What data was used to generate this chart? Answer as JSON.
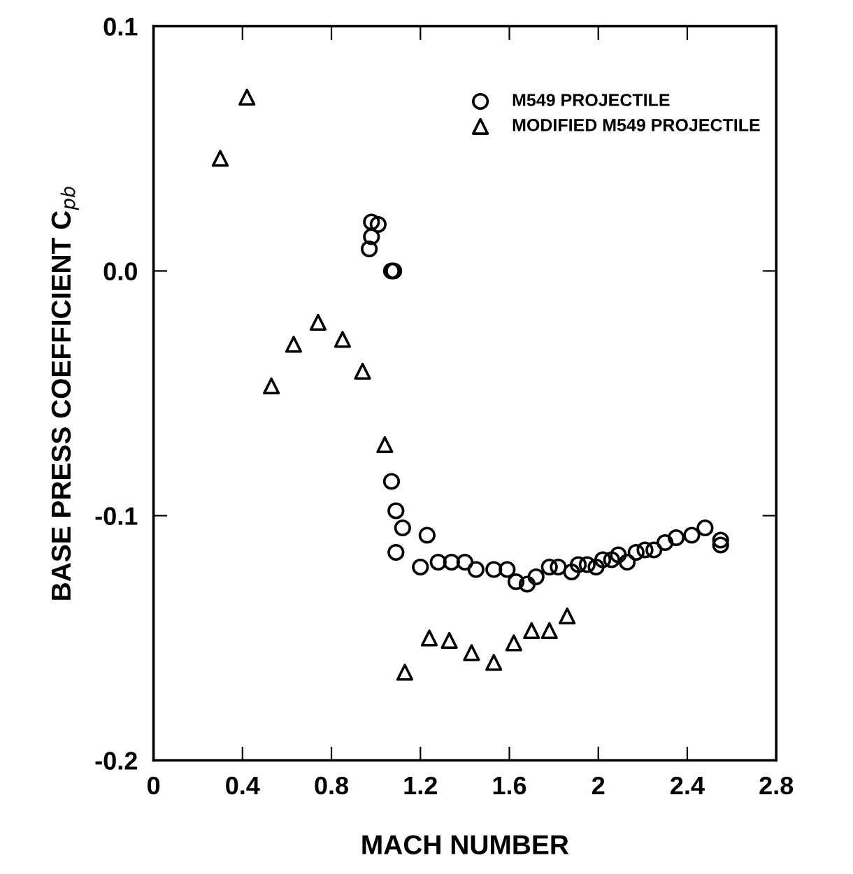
{
  "chart_data": {
    "type": "scatter",
    "xlabel": "MACH NUMBER",
    "ylabel": "BASE PRESS COEFFICIENT C$_{pb}$",
    "xlim": [
      0,
      2.8
    ],
    "ylim": [
      -0.2,
      0.1
    ],
    "xticks": [
      0,
      0.4,
      0.8,
      1.2,
      1.6,
      2,
      2.4,
      2.8
    ],
    "yticks": [
      {
        "value": -0.2,
        "label": "-0.2"
      },
      {
        "value": -0.1,
        "label": "-0.1"
      },
      {
        "value": 0,
        "label": "0.0"
      },
      {
        "value": 0.1,
        "label": "0.1"
      }
    ],
    "grid": false,
    "legend": "top right",
    "series": [
      {
        "name": "M549 PROJECTILE",
        "color": "#000000",
        "marker": "circle",
        "x": [
          0.97,
          0.98,
          0.98,
          1.01,
          1.07,
          1.08,
          1.07,
          1.09,
          1.12,
          1.23,
          1.09,
          1.2,
          1.28,
          1.34,
          1.4,
          1.45,
          1.53,
          1.59,
          1.63,
          1.68,
          1.72,
          1.78,
          1.82,
          1.85,
          1.88,
          1.91,
          1.95,
          1.99,
          2.02,
          2.06,
          2.09,
          2.13,
          2.17,
          2.21,
          2.25,
          2.3,
          2.35,
          2.42,
          2.48,
          2.53,
          2.55,
          2.55
        ],
        "values": [
          0.009,
          0.014,
          0.02,
          0.019,
          0.0,
          0.0,
          -0.086,
          -0.098,
          -0.105,
          -0.108,
          -0.115,
          -0.121,
          -0.119,
          -0.119,
          -0.119,
          -0.122,
          -0.122,
          -0.122,
          -0.127,
          -0.128,
          -0.125,
          -0.121,
          -0.121,
          null,
          -0.123,
          -0.12,
          -0.12,
          -0.121,
          -0.118,
          -0.118,
          -0.116,
          -0.119,
          -0.115,
          -0.114,
          -0.114,
          -0.111,
          -0.109,
          -0.108,
          -0.105,
          null,
          -0.11,
          -0.112
        ]
      },
      {
        "name": "MODIFIED M549 PROJECTILE",
        "color": "#000000",
        "marker": "triangle",
        "x": [
          0.3,
          0.42,
          0.53,
          0.63,
          0.74,
          0.85,
          0.94,
          1.04,
          1.13,
          1.24,
          1.33,
          1.43,
          1.53,
          1.62,
          1.7,
          1.78,
          1.86
        ],
        "values": [
          0.046,
          0.071,
          -0.047,
          -0.03,
          -0.021,
          -0.028,
          -0.041,
          -0.071,
          -0.164,
          -0.15,
          -0.151,
          -0.156,
          -0.16,
          -0.152,
          -0.147,
          -0.147,
          -0.141
        ]
      }
    ]
  }
}
